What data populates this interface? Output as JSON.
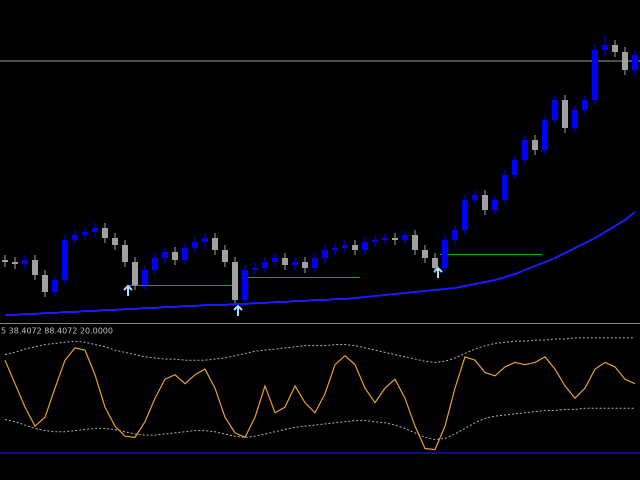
{
  "chart_data": [
    {
      "type": "candlestick",
      "ylim": [
        0,
        320
      ],
      "up_color": "#0000ff",
      "down_color": "#a0a0a0",
      "hline": 259,
      "hline_color": "#9a9aa8",
      "candles": [
        [
          60,
          65,
          53,
          58
        ],
        [
          58,
          63,
          51,
          56
        ],
        [
          56,
          65,
          51,
          60
        ],
        [
          60,
          65,
          40,
          45
        ],
        [
          45,
          50,
          23,
          28
        ],
        [
          28,
          45,
          23,
          40
        ],
        [
          40,
          85,
          35,
          80
        ],
        [
          80,
          90,
          75,
          85
        ],
        [
          85,
          93,
          80,
          88
        ],
        [
          88,
          97,
          83,
          92
        ],
        [
          92,
          97,
          77,
          82
        ],
        [
          82,
          87,
          70,
          75
        ],
        [
          75,
          80,
          53,
          58
        ],
        [
          58,
          63,
          30,
          35
        ],
        [
          35,
          55,
          30,
          50
        ],
        [
          50,
          67,
          45,
          62
        ],
        [
          62,
          73,
          57,
          68
        ],
        [
          68,
          73,
          55,
          60
        ],
        [
          60,
          77,
          55,
          72
        ],
        [
          72,
          83,
          67,
          78
        ],
        [
          78,
          87,
          73,
          82
        ],
        [
          82,
          87,
          65,
          70
        ],
        [
          70,
          75,
          53,
          58
        ],
        [
          58,
          63,
          15,
          20
        ],
        [
          20,
          55,
          15,
          50
        ],
        [
          50,
          57,
          45,
          52
        ],
        [
          52,
          63,
          47,
          58
        ],
        [
          58,
          67,
          53,
          62
        ],
        [
          62,
          67,
          50,
          55
        ],
        [
          55,
          63,
          50,
          58
        ],
        [
          58,
          63,
          47,
          52
        ],
        [
          52,
          67,
          47,
          62
        ],
        [
          62,
          75,
          57,
          70
        ],
        [
          70,
          77,
          65,
          72
        ],
        [
          72,
          80,
          67,
          75
        ],
        [
          75,
          80,
          65,
          70
        ],
        [
          70,
          83,
          65,
          78
        ],
        [
          78,
          85,
          73,
          80
        ],
        [
          80,
          87,
          75,
          82
        ],
        [
          82,
          87,
          75,
          80
        ],
        [
          80,
          90,
          75,
          85
        ],
        [
          85,
          90,
          65,
          70
        ],
        [
          70,
          75,
          57,
          62
        ],
        [
          62,
          67,
          47,
          52
        ],
        [
          52,
          85,
          47,
          80
        ],
        [
          80,
          95,
          75,
          90
        ],
        [
          90,
          125,
          85,
          120
        ],
        [
          120,
          130,
          115,
          125
        ],
        [
          125,
          130,
          105,
          110
        ],
        [
          110,
          125,
          105,
          120
        ],
        [
          120,
          150,
          115,
          145
        ],
        [
          145,
          165,
          140,
          160
        ],
        [
          160,
          185,
          155,
          180
        ],
        [
          180,
          185,
          165,
          170
        ],
        [
          170,
          205,
          165,
          200
        ],
        [
          200,
          225,
          195,
          220
        ],
        [
          220,
          225,
          187,
          192
        ],
        [
          192,
          215,
          187,
          210
        ],
        [
          210,
          225,
          205,
          220
        ],
        [
          220,
          275,
          215,
          270
        ],
        [
          270,
          285,
          265,
          275
        ],
        [
          275,
          280,
          263,
          268
        ],
        [
          268,
          273,
          245,
          250
        ],
        [
          250,
          270,
          245,
          265
        ]
      ],
      "ma": {
        "color": "#1a1aff",
        "values": [
          5,
          5,
          6,
          6,
          7,
          7,
          8,
          8,
          9,
          9,
          10,
          10,
          11,
          11,
          12,
          12,
          13,
          13,
          14,
          14,
          15,
          15,
          15,
          16,
          16,
          17,
          17,
          18,
          18,
          19,
          19,
          20,
          20,
          21,
          21,
          22,
          23,
          24,
          25,
          26,
          27,
          28,
          29,
          30,
          31,
          32,
          34,
          36,
          38,
          40,
          43,
          46,
          50,
          54,
          58,
          62,
          67,
          72,
          77,
          82,
          88,
          94,
          100,
          108
        ]
      }
    },
    {
      "type": "line",
      "label": "5 38.4072 88.4072 20.0000",
      "ylim": [
        0,
        110
      ],
      "level": 0,
      "level_color": "#1a1aff",
      "series": [
        {
          "color": "#e8a030",
          "style": "solid",
          "values": [
            83,
            62,
            41,
            24,
            32,
            58,
            83,
            94,
            92,
            70,
            41,
            24,
            15,
            14,
            28,
            49,
            66,
            70,
            62,
            70,
            75,
            58,
            32,
            18,
            14,
            32,
            60,
            36,
            41,
            60,
            45,
            36,
            53,
            79,
            87,
            79,
            58,
            45,
            58,
            66,
            49,
            24,
            4,
            3,
            24,
            58,
            86,
            83,
            72,
            69,
            77,
            81,
            79,
            81,
            86,
            75,
            60,
            49,
            58,
            75,
            81,
            77,
            66,
            62
          ]
        },
        {
          "color": "#b0b0b0",
          "style": "dotted",
          "values": [
            88,
            90,
            93,
            95,
            97,
            98,
            99,
            100,
            99,
            97,
            95,
            92,
            90,
            88,
            86,
            85,
            84,
            84,
            83,
            83,
            83,
            84,
            85,
            87,
            89,
            91,
            92,
            93,
            94,
            95,
            96,
            96,
            96,
            97,
            97,
            96,
            94,
            92,
            90,
            88,
            86,
            84,
            82,
            81,
            82,
            85,
            89,
            93,
            96,
            98,
            99,
            100,
            100,
            101,
            101,
            102,
            102,
            103,
            103,
            103,
            103,
            103,
            103,
            103
          ]
        },
        {
          "color": "#b0b0b0",
          "style": "dotted",
          "values": [
            30,
            28,
            25,
            22,
            20,
            19,
            19,
            20,
            21,
            22,
            22,
            21,
            19,
            17,
            16,
            16,
            17,
            18,
            19,
            20,
            20,
            19,
            17,
            15,
            14,
            15,
            17,
            19,
            21,
            23,
            24,
            25,
            26,
            27,
            28,
            29,
            29,
            28,
            27,
            25,
            22,
            18,
            14,
            12,
            13,
            17,
            22,
            27,
            31,
            33,
            34,
            35,
            36,
            37,
            38,
            38,
            39,
            39,
            40,
            40,
            40,
            40,
            40,
            40
          ]
        }
      ]
    }
  ]
}
